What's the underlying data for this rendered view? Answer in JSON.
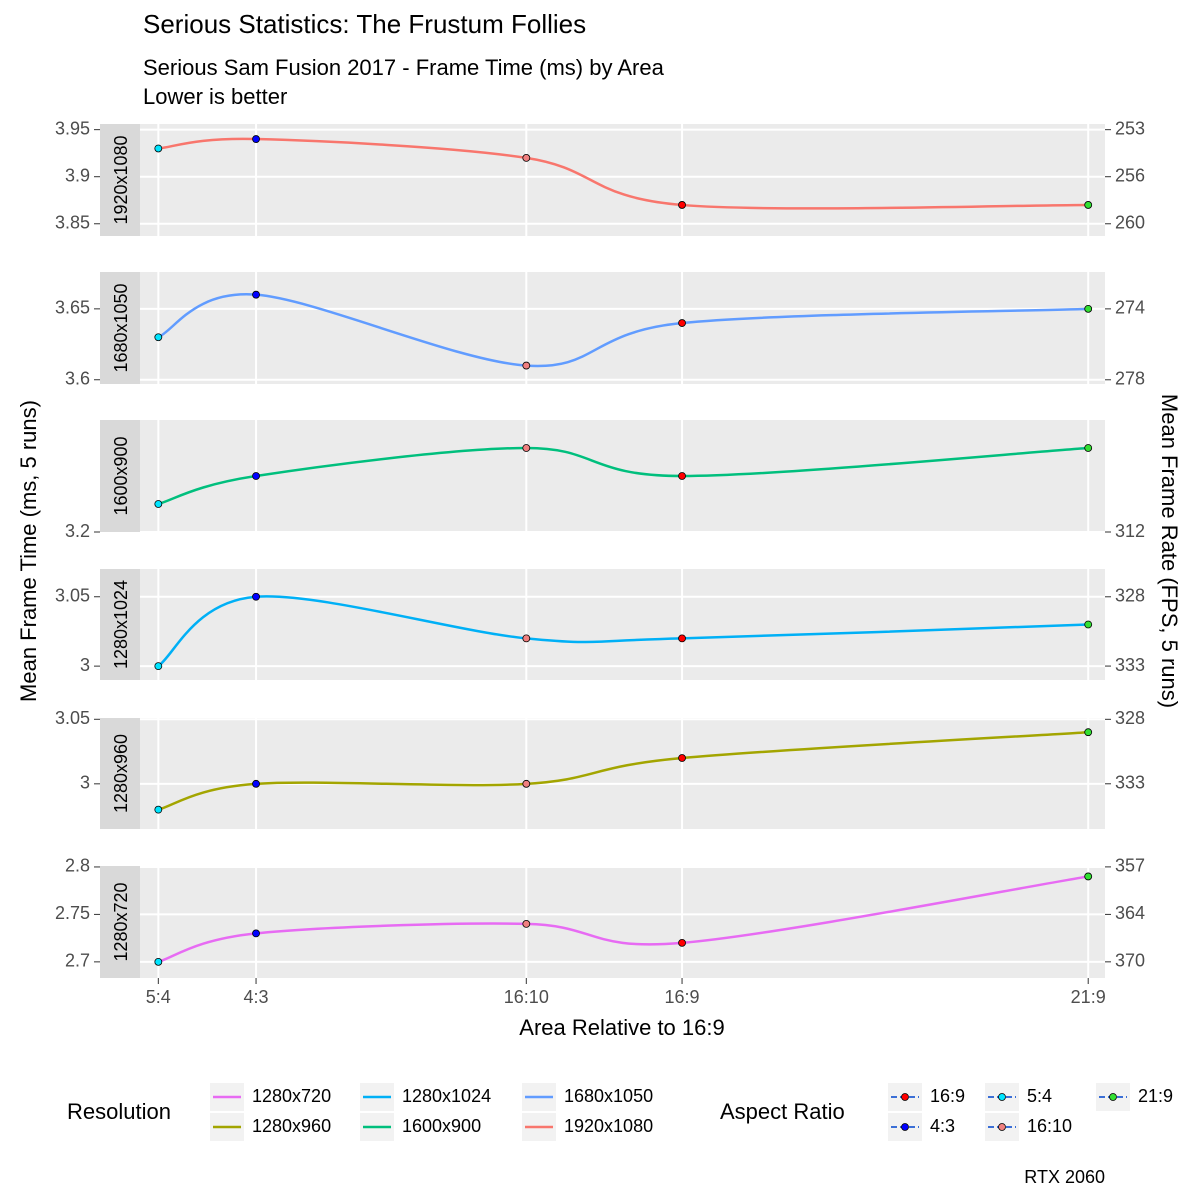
{
  "title": "Serious Statistics: The Frustum Follies",
  "subtitle": [
    "Serious Sam Fusion 2017 - Frame Time (ms) by Area",
    "Lower is better"
  ],
  "caption": "RTX 2060",
  "y_label": "Mean Frame Time (ms, 5 runs)",
  "y2_label": "Mean Frame Rate (FPS, 5 runs)",
  "x_axis": {
    "label": "Area Relative to 16:9",
    "lim": [
      0.645,
      1.277
    ],
    "ticks": [
      {
        "value": 0.657,
        "label": "5:4"
      },
      {
        "value": 0.721,
        "label": "4:3"
      },
      {
        "value": 0.898,
        "label": "16:10"
      },
      {
        "value": 1.0,
        "label": "16:9"
      },
      {
        "value": 1.266,
        "label": "21:9"
      }
    ]
  },
  "resolution_legend": {
    "title": "Resolution"
  },
  "aspect_legend": {
    "title": "Aspect Ratio",
    "entries": [
      {
        "name": "16:9",
        "color": "#ff0000"
      },
      {
        "name": "4:3",
        "color": "#0000ff"
      },
      {
        "name": "5:4",
        "color": "#00e5ff"
      },
      {
        "name": "16:10",
        "color": "#f08080"
      },
      {
        "name": "21:9",
        "color": "#33e033"
      }
    ]
  },
  "chart_data": [
    {
      "type": "line",
      "strip": "1920x1080",
      "ylim": [
        3.837,
        3.956
      ],
      "yticks": [
        3.95,
        3.9,
        3.85
      ],
      "y2_scale": "reciprocal",
      "y2lim": [
        260.62,
        252.78
      ],
      "y2ticks": [
        {
          "value": 253.165,
          "label": "253"
        },
        {
          "value": 256.41,
          "label": "256"
        },
        {
          "value": 259.74,
          "label": "260"
        }
      ],
      "series": [
        {
          "name": "1920x1080",
          "color": "#f8766d",
          "values": [
            3.93,
            3.94,
            3.92,
            3.87,
            3.87
          ]
        }
      ]
    },
    {
      "type": "line",
      "strip": "1680x1050",
      "ylim": [
        3.597,
        3.676
      ],
      "yticks": [
        3.65,
        3.6
      ],
      "y2_scale": "reciprocal",
      "y2lim": [
        278.01,
        272.03
      ],
      "y2ticks": [
        {
          "value": 273.97,
          "label": "274"
        },
        {
          "value": 277.78,
          "label": "278"
        }
      ],
      "series": [
        {
          "name": "1680x1050",
          "color": "#619cff",
          "values": [
            3.63,
            3.66,
            3.61,
            3.64,
            3.65
          ]
        }
      ]
    },
    {
      "type": "line",
      "strip": "1600x900",
      "ylim": [
        3.2,
        3.24
      ],
      "yticks": [
        3.2
      ],
      "y2_scale": "reciprocal",
      "y2lim": [
        312.5,
        308.64
      ],
      "y2ticks": [
        {
          "value": 312.5,
          "label": "312"
        }
      ],
      "series": [
        {
          "name": "1600x900",
          "color": "#00bf7d",
          "values": [
            3.21,
            3.22,
            3.23,
            3.22,
            3.23
          ]
        }
      ]
    },
    {
      "type": "line",
      "strip": "1280x1024",
      "ylim": [
        2.99,
        3.07
      ],
      "yticks": [
        3.05,
        3
      ],
      "y2_scale": "reciprocal",
      "y2lim": [
        334.45,
        325.73
      ],
      "y2ticks": [
        {
          "value": 327.87,
          "label": "328"
        },
        {
          "value": 333.33,
          "label": "333"
        }
      ],
      "series": [
        {
          "name": "1280x1024",
          "color": "#00b0f6",
          "values": [
            3.0,
            3.05,
            3.02,
            3.02,
            3.03
          ]
        }
      ]
    },
    {
      "type": "line",
      "strip": "1280x960",
      "ylim": [
        2.965,
        3.051
      ],
      "yticks": [
        3.05,
        3
      ],
      "y2_scale": "reciprocal",
      "y2lim": [
        337.27,
        327.76
      ],
      "y2ticks": [
        {
          "value": 327.87,
          "label": "328"
        },
        {
          "value": 333.33,
          "label": "333"
        }
      ],
      "series": [
        {
          "name": "1280x960",
          "color": "#a3a500",
          "values": [
            2.98,
            3.0,
            3.0,
            3.02,
            3.04
          ]
        }
      ]
    },
    {
      "type": "line",
      "strip": "1280x720",
      "ylim": [
        2.683,
        2.801
      ],
      "yticks": [
        2.8,
        2.75,
        2.7
      ],
      "y2_scale": "reciprocal",
      "y2lim": [
        372.72,
        357.02
      ],
      "y2ticks": [
        {
          "value": 357.14,
          "label": "357"
        },
        {
          "value": 363.64,
          "label": "364"
        },
        {
          "value": 370.37,
          "label": "370"
        }
      ],
      "series": [
        {
          "name": "1280x720",
          "color": "#e76bf3",
          "values": [
            2.7,
            2.73,
            2.74,
            2.72,
            2.79
          ]
        }
      ]
    }
  ]
}
